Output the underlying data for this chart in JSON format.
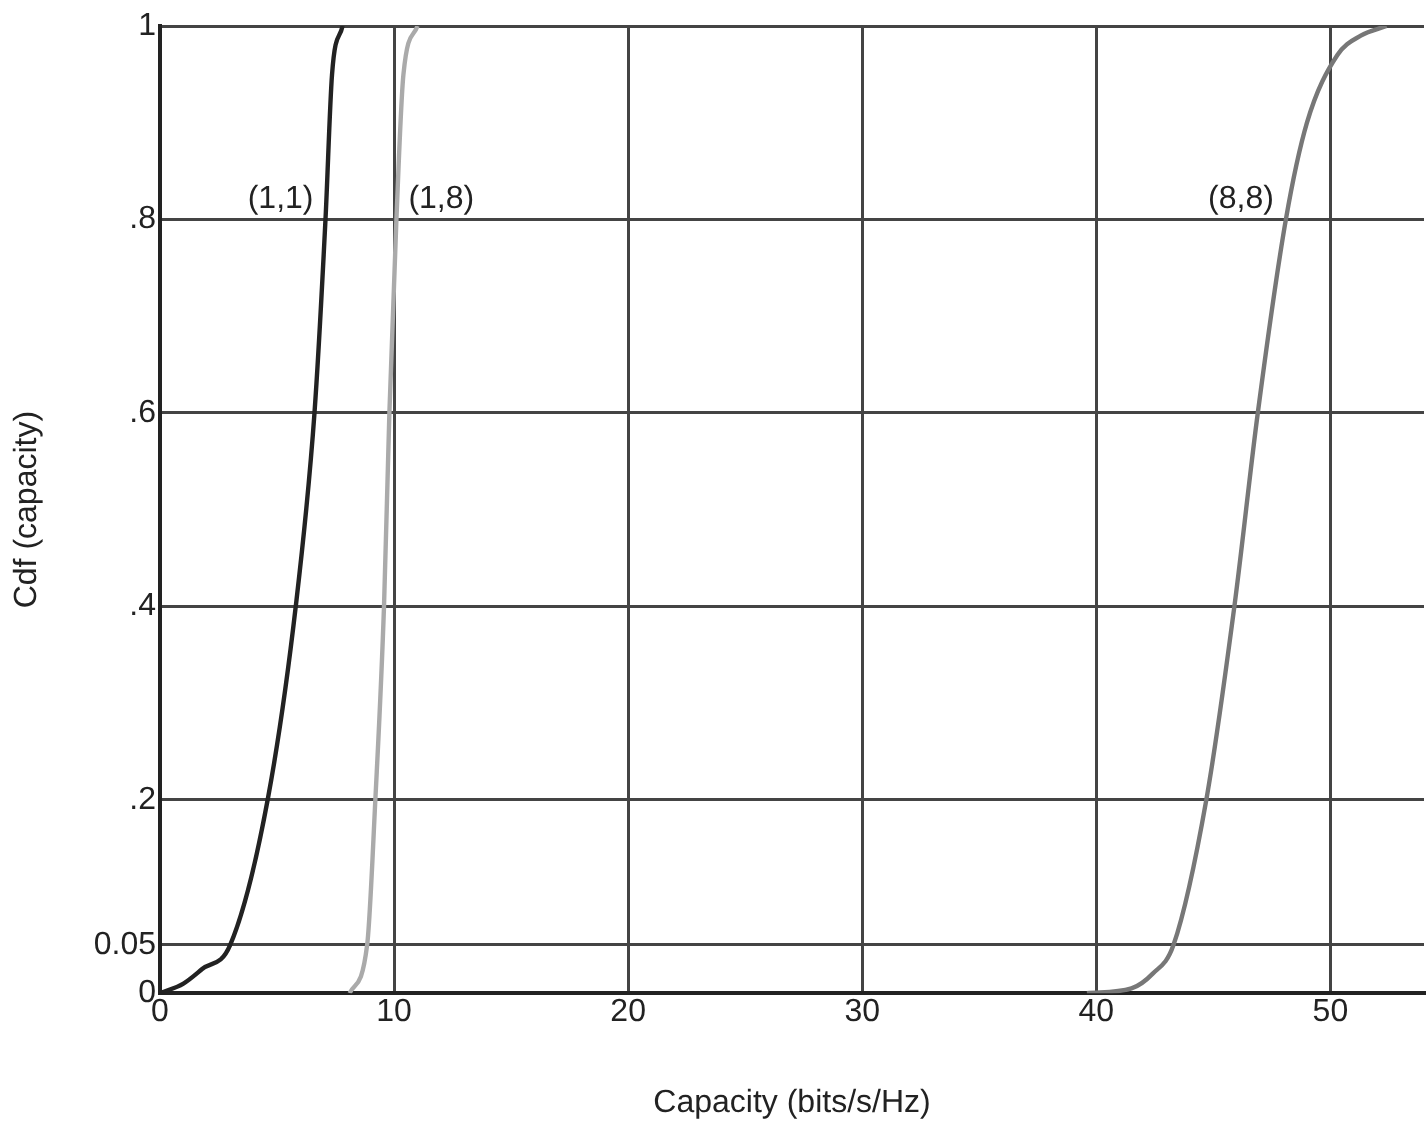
{
  "chart_data": {
    "type": "line",
    "xlabel": "Capacity (bits/s/Hz)",
    "ylabel": "Cdf (capacity)",
    "xlim": [
      0,
      54
    ],
    "ylim": [
      0,
      1
    ],
    "xticks": [
      0,
      10,
      20,
      30,
      40,
      50
    ],
    "yticks": [
      0,
      {
        "value": 0.05,
        "label": "0.05"
      },
      {
        "value": 0.2,
        "label": ".2"
      },
      {
        "value": 0.4,
        "label": ".4"
      },
      {
        "value": 0.6,
        "label": ".6"
      },
      {
        "value": 0.8,
        "label": ".8"
      },
      1
    ],
    "grid": true,
    "legend": false,
    "marker": "none",
    "line_style": "solid",
    "series": [
      {
        "name": "(1,1)",
        "color": "#222222",
        "x": [
          0,
          1,
          1.8,
          3.0,
          4.6,
          5.8,
          6.6,
          7.07,
          7.35,
          7.8
        ],
        "values": [
          0,
          0.01,
          0.025,
          0.05,
          0.2,
          0.4,
          0.6,
          0.8,
          0.95,
          1
        ]
      },
      {
        "name": "(1,8)",
        "color": "#aaaaaa",
        "x": [
          8.1,
          8.85,
          9.2,
          9.57,
          9.8,
          10.1,
          10.4,
          11.0
        ],
        "values": [
          0,
          0.05,
          0.2,
          0.4,
          0.6,
          0.8,
          0.95,
          1
        ]
      },
      {
        "name": "(8,8)",
        "color": "#777777",
        "x": [
          39.6,
          41.5,
          42.4,
          43.3,
          44.7,
          45.9,
          46.9,
          48.1,
          49.0,
          50.3,
          51.3,
          52.4
        ],
        "values": [
          0,
          0.005,
          0.02,
          0.05,
          0.2,
          0.4,
          0.6,
          0.8,
          0.9,
          0.97,
          0.99,
          1
        ]
      }
    ]
  }
}
